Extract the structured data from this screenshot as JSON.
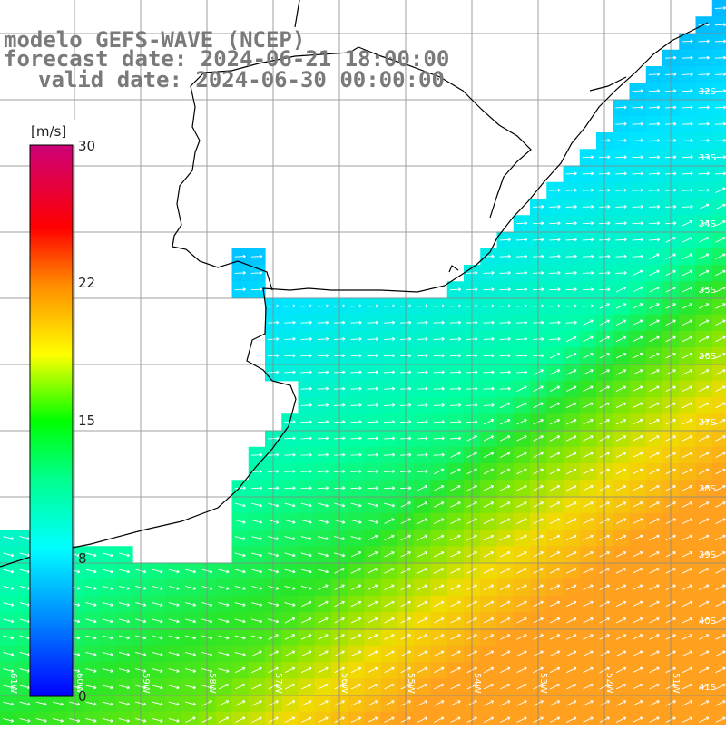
{
  "title": {
    "line1": "modelo GEFS-WAVE (NCEP)",
    "line2": "forecast date: 2024-06-21 18:00:00",
    "line3": "valid date: 2024-06-30 00:00:00"
  },
  "colorbar": {
    "unit": "[m/s]",
    "ticks": [
      "30",
      "22",
      "15",
      "8",
      "0"
    ],
    "tick_values": [
      30,
      22,
      15,
      8,
      0
    ],
    "colors": [
      "#0000ff",
      "#00aaff",
      "#00ffff",
      "#00ff00",
      "#ffff00",
      "#ff8800",
      "#ff0000",
      "#cc0066"
    ]
  },
  "lat_labels": [
    "32S",
    "33S",
    "34S",
    "35S",
    "36S",
    "37S",
    "38S",
    "39S",
    "40S",
    "41S"
  ],
  "lon_labels": [
    "61W",
    "60W",
    "59W",
    "58W",
    "57W",
    "56W",
    "55W",
    "54W",
    "53W",
    "52W",
    "51W"
  ],
  "colors": {
    "land": "#ffffff",
    "coast": "#000000",
    "grid": "#888888",
    "arrows": "#ffffff",
    "title": "#7a7a7a"
  }
}
